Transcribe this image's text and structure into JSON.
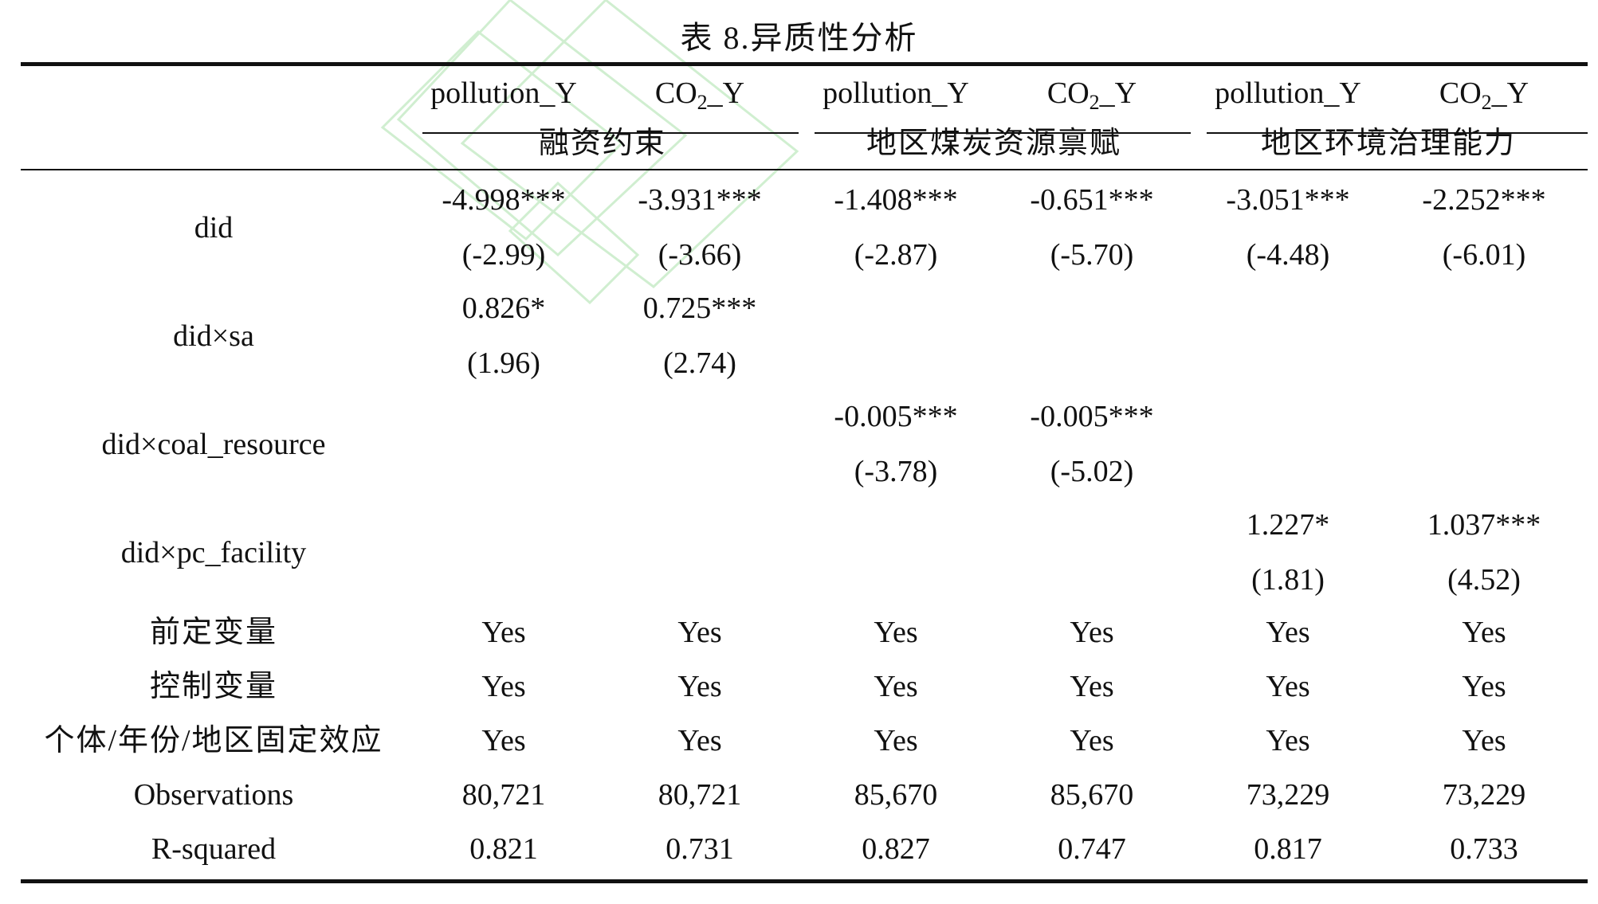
{
  "title": "表 8.异质性分析",
  "header": {
    "dependent_vars": [
      {
        "prefix": "pollution_Y",
        "sub": "",
        "suffix": ""
      },
      {
        "prefix": "CO",
        "sub": "2",
        "suffix": "_Y"
      },
      {
        "prefix": "pollution_Y",
        "sub": "",
        "suffix": ""
      },
      {
        "prefix": "CO",
        "sub": "2",
        "suffix": "_Y"
      },
      {
        "prefix": "pollution_Y",
        "sub": "",
        "suffix": ""
      },
      {
        "prefix": "CO",
        "sub": "2",
        "suffix": "_Y"
      }
    ],
    "groups": [
      "融资约束",
      "地区煤炭资源禀赋",
      "地区环境治理能力"
    ]
  },
  "rows": [
    {
      "label": "did",
      "coef": [
        "-4.998***",
        "-3.931***",
        "-1.408***",
        "-0.651***",
        "-3.051***",
        "-2.252***"
      ],
      "t": [
        "(-2.99)",
        "(-3.66)",
        "(-2.87)",
        "(-5.70)",
        "(-4.48)",
        "(-6.01)"
      ]
    },
    {
      "label": "did×sa",
      "coef": [
        "0.826*",
        "0.725***",
        "",
        "",
        "",
        ""
      ],
      "t": [
        "(1.96)",
        "(2.74)",
        "",
        "",
        "",
        ""
      ]
    },
    {
      "label": "did×coal_resource",
      "coef": [
        "",
        "",
        "-0.005***",
        "-0.005***",
        "",
        ""
      ],
      "t": [
        "",
        "",
        "(-3.78)",
        "(-5.02)",
        "",
        ""
      ]
    },
    {
      "label": "did×pc_facility",
      "coef": [
        "",
        "",
        "",
        "",
        "1.227*",
        "1.037***"
      ],
      "t": [
        "",
        "",
        "",
        "",
        "(1.81)",
        "(4.52)"
      ]
    }
  ],
  "controls": [
    {
      "label": "前定变量",
      "values": [
        "Yes",
        "Yes",
        "Yes",
        "Yes",
        "Yes",
        "Yes"
      ]
    },
    {
      "label": "控制变量",
      "values": [
        "Yes",
        "Yes",
        "Yes",
        "Yes",
        "Yes",
        "Yes"
      ]
    },
    {
      "label": "个体/年份/地区固定效应",
      "values": [
        "Yes",
        "Yes",
        "Yes",
        "Yes",
        "Yes",
        "Yes"
      ]
    }
  ],
  "stats": [
    {
      "label": "Observations",
      "values": [
        "80,721",
        "80,721",
        "85,670",
        "85,670",
        "73,229",
        "73,229"
      ]
    },
    {
      "label": "R-squared",
      "values": [
        "0.821",
        "0.731",
        "0.827",
        "0.747",
        "0.817",
        "0.733"
      ]
    }
  ]
}
